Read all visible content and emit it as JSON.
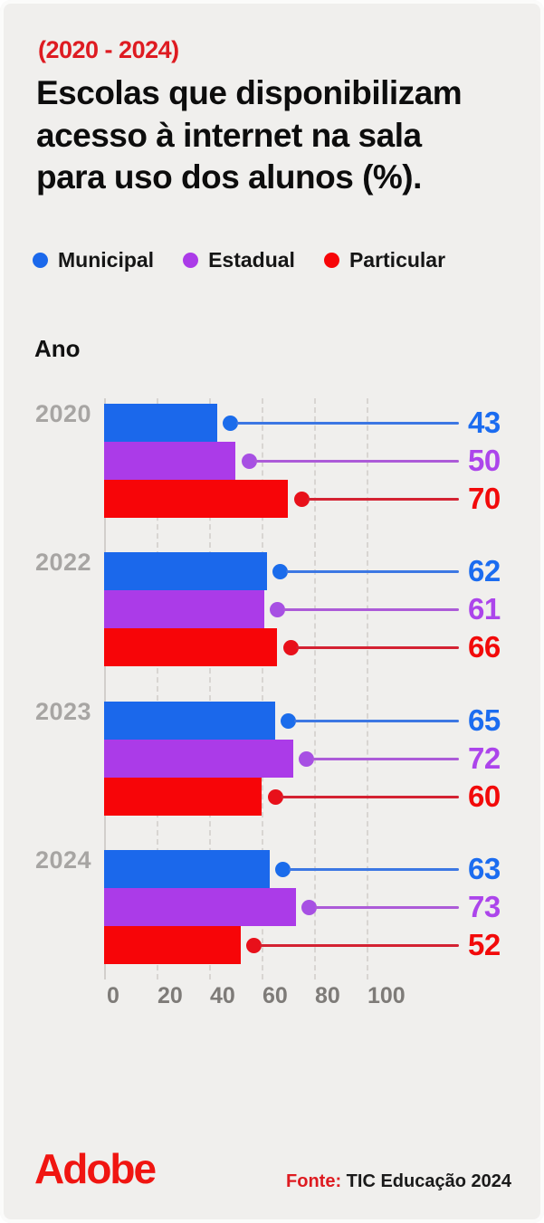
{
  "meta": {
    "subtitle": "(2020 - 2024)",
    "title_lines": [
      "Escolas que disponibilizam",
      "acesso à internet na sala",
      "para uso dos alunos (%)."
    ],
    "axis_title": "Ano"
  },
  "legend": {
    "items": [
      {
        "label": "Municipal",
        "color": "#1B68EB"
      },
      {
        "label": "Estadual",
        "color": "#AB3BE8"
      },
      {
        "label": "Particular",
        "color": "#F70508"
      }
    ]
  },
  "chart_data": {
    "type": "bar",
    "orientation": "horizontal",
    "title": "Escolas que disponibilizam acesso à internet na sala para uso dos alunos (%).",
    "subtitle": "(2020 - 2024)",
    "ylabel": "Ano",
    "xlabel": "",
    "categories": [
      "2020",
      "2022",
      "2023",
      "2024"
    ],
    "series": [
      {
        "name": "Municipal",
        "color": "#1B68EB",
        "line_color": "#3C77E3",
        "dot_color": "#1B6CEB",
        "label_color": "#1B6CF0",
        "values": [
          43,
          62,
          65,
          63
        ]
      },
      {
        "name": "Estadual",
        "color": "#AB3BE8",
        "line_color": "#AC5BD8",
        "dot_color": "#A750E3",
        "label_color": "#AC45EB",
        "values": [
          50,
          61,
          72,
          73
        ]
      },
      {
        "name": "Particular",
        "color": "#F70508",
        "line_color": "#D42232",
        "dot_color": "#E8101A",
        "label_color": "#F20A0A",
        "values": [
          70,
          66,
          60,
          52
        ]
      }
    ],
    "x_ticks": [
      0,
      20,
      40,
      60,
      80,
      100
    ],
    "xlim": [
      0,
      100
    ],
    "grid": "dashed-vertical",
    "legend_position": "top-left",
    "colors": {
      "background": "#F0EFED",
      "gridline": "#D8D5D2",
      "year_label": "#A7A5A3",
      "tick_label": "#7E7B78",
      "accent_red": "#DE1B21"
    }
  },
  "footer": {
    "brand": "Adobe",
    "source_label": "Fonte:",
    "source_text": " TIC Educação 2024"
  }
}
